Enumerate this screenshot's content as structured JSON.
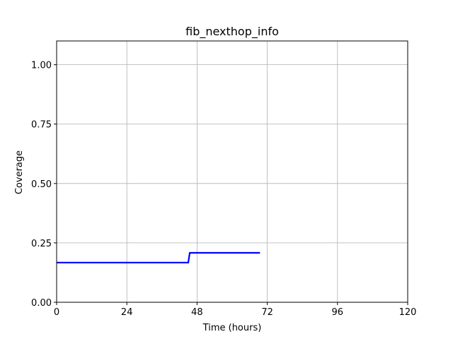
{
  "chart_data": {
    "type": "line",
    "title": "fib_nexthop_info",
    "xlabel": "Time (hours)",
    "ylabel": "Coverage",
    "xlim": [
      0,
      120
    ],
    "ylim": [
      0,
      1.1
    ],
    "xticks": [
      0,
      24,
      48,
      72,
      96,
      120
    ],
    "xtick_labels": [
      "0",
      "24",
      "48",
      "72",
      "96",
      "120"
    ],
    "yticks": [
      0.0,
      0.25,
      0.5,
      0.75,
      1.0
    ],
    "ytick_labels": [
      "0.00",
      "0.25",
      "0.50",
      "0.75",
      "1.00"
    ],
    "grid": true,
    "series": [
      {
        "color": "#0000ff",
        "x": [
          0,
          45,
          45.5,
          69.5
        ],
        "y": [
          0.167,
          0.167,
          0.208,
          0.208
        ]
      }
    ]
  }
}
